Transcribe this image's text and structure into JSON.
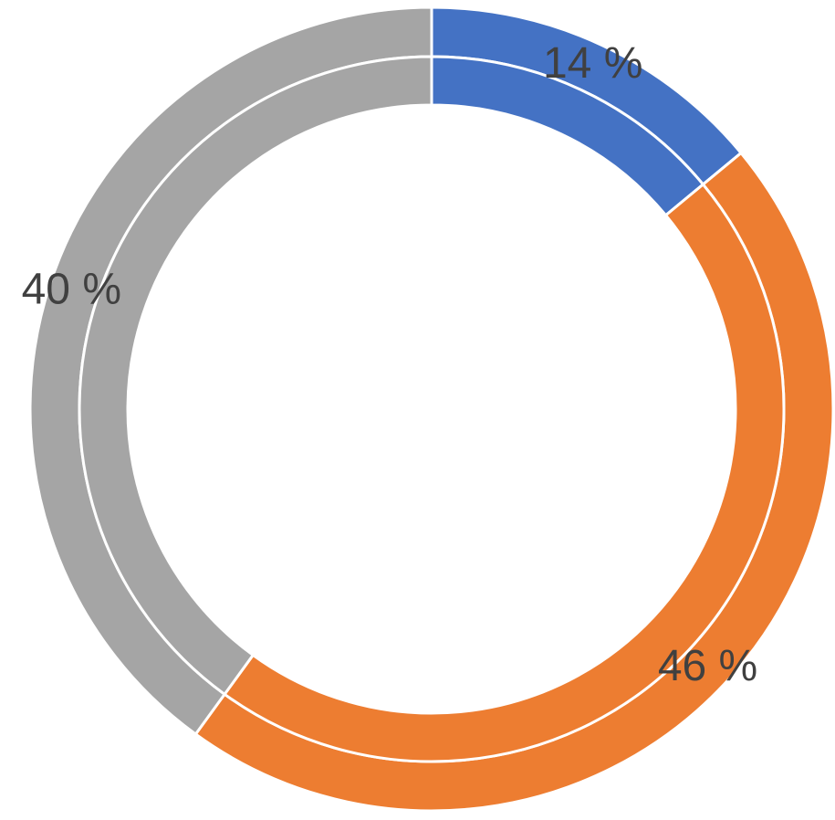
{
  "chart_data": {
    "type": "doughnut",
    "colors": [
      "#4472c4",
      "#ed7d31",
      "#a5a5a5"
    ],
    "series": [
      {
        "values": [
          14,
          46,
          40
        ],
        "value_labels": [
          "14 %",
          "46 %",
          "40 %"
        ]
      },
      {
        "values": [
          14,
          46,
          40
        ]
      }
    ]
  }
}
